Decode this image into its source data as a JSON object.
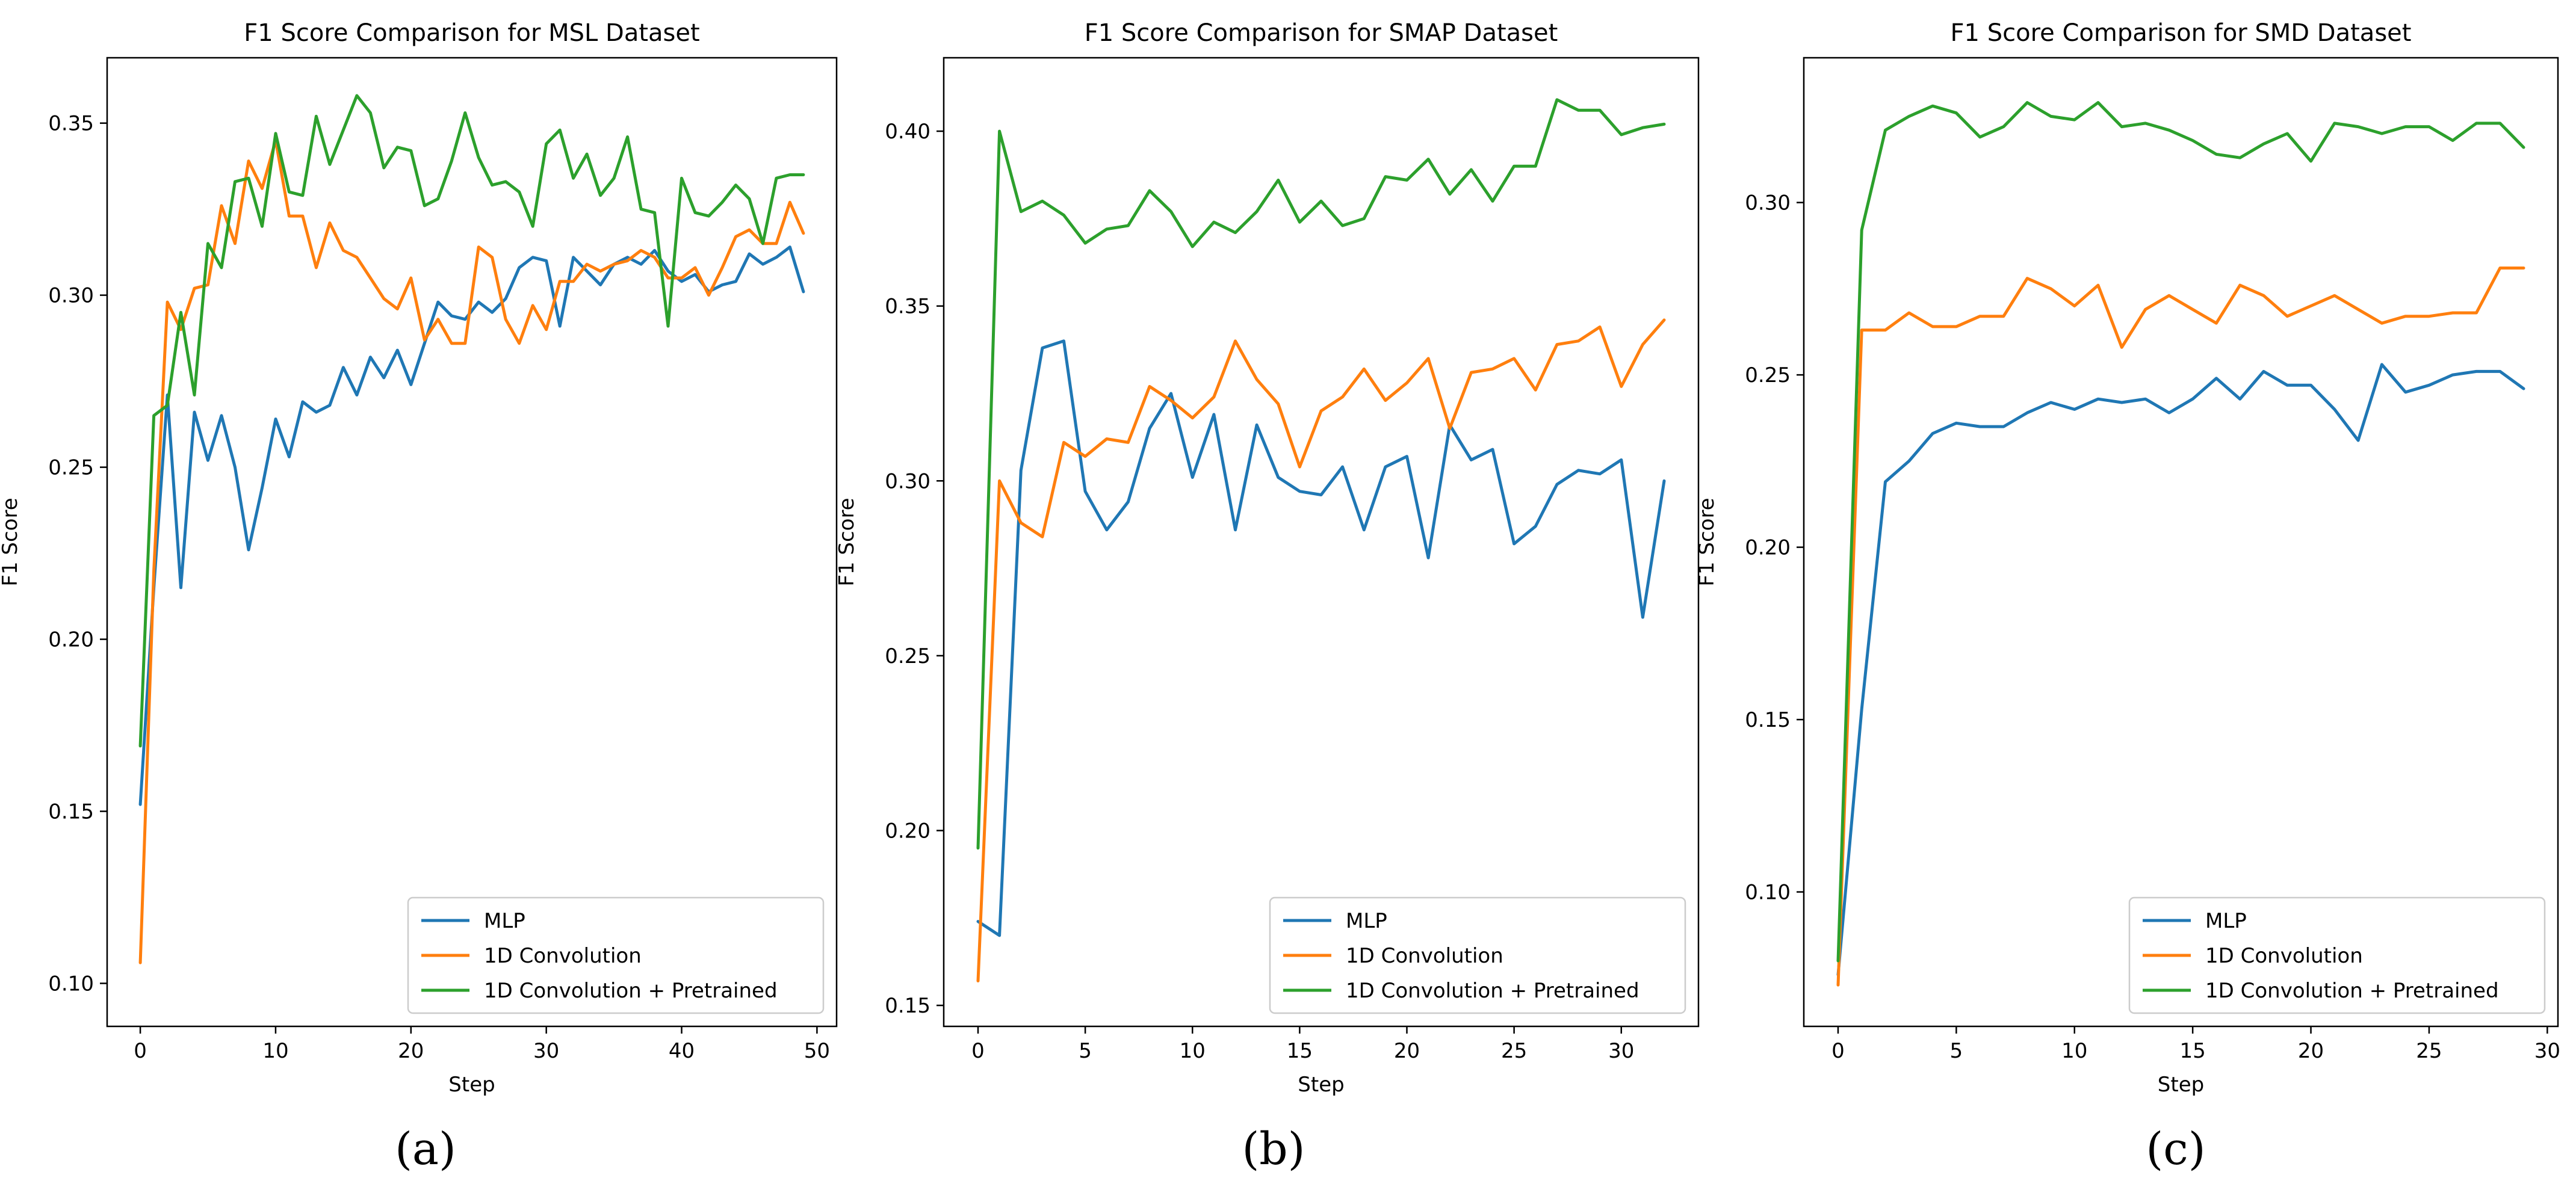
{
  "figure": {
    "panel_labels": [
      "(a)",
      "(b)",
      "(c)"
    ]
  },
  "series_colors": [
    "#1f77b4",
    "#ff7f0e",
    "#2ca02c"
  ],
  "legend_location": "lower-right",
  "chart_data": [
    {
      "type": "line",
      "title": "F1 Score Comparison for MSL Dataset",
      "xlabel": "Step",
      "ylabel": "F1 Score",
      "xlim": [
        -2.45,
        51.45
      ],
      "ylim": [
        0.0875,
        0.369
      ],
      "xticks": [
        0,
        10,
        20,
        30,
        40,
        50
      ],
      "yticks": [
        0.1,
        0.15,
        0.2,
        0.25,
        0.3,
        0.35
      ],
      "ytick_labels": [
        "0.10",
        "0.15",
        "0.20",
        "0.25",
        "0.30",
        "0.35"
      ],
      "series": [
        {
          "name": "MLP",
          "values": [
            0.152,
            0.215,
            0.271,
            0.215,
            0.266,
            0.252,
            0.265,
            0.25,
            0.226,
            0.244,
            0.264,
            0.253,
            0.269,
            0.266,
            0.268,
            0.279,
            0.271,
            0.282,
            0.276,
            0.284,
            0.274,
            0.286,
            0.298,
            0.294,
            0.293,
            0.298,
            0.295,
            0.299,
            0.308,
            0.311,
            0.31,
            0.291,
            0.311,
            0.307,
            0.303,
            0.309,
            0.311,
            0.309,
            0.313,
            0.307,
            0.304,
            0.306,
            0.301,
            0.303,
            0.304,
            0.312,
            0.309,
            0.311,
            0.314,
            0.301
          ]
        },
        {
          "name": "1D Convolution",
          "values": [
            0.106,
            0.22,
            0.298,
            0.29,
            0.302,
            0.303,
            0.326,
            0.315,
            0.339,
            0.331,
            0.345,
            0.323,
            0.323,
            0.308,
            0.321,
            0.313,
            0.311,
            0.305,
            0.299,
            0.296,
            0.305,
            0.287,
            0.293,
            0.286,
            0.286,
            0.314,
            0.311,
            0.293,
            0.286,
            0.297,
            0.29,
            0.304,
            0.304,
            0.309,
            0.307,
            0.309,
            0.31,
            0.313,
            0.311,
            0.305,
            0.305,
            0.308,
            0.3,
            0.308,
            0.317,
            0.319,
            0.315,
            0.315,
            0.327,
            0.318
          ]
        },
        {
          "name": "1D Convolution + Pretrained",
          "values": [
            0.169,
            0.265,
            0.268,
            0.295,
            0.271,
            0.315,
            0.308,
            0.333,
            0.334,
            0.32,
            0.347,
            0.33,
            0.329,
            0.352,
            0.338,
            0.348,
            0.358,
            0.353,
            0.337,
            0.343,
            0.342,
            0.326,
            0.328,
            0.339,
            0.353,
            0.34,
            0.332,
            0.333,
            0.33,
            0.32,
            0.344,
            0.348,
            0.334,
            0.341,
            0.329,
            0.334,
            0.346,
            0.325,
            0.324,
            0.291,
            0.334,
            0.324,
            0.323,
            0.327,
            0.332,
            0.328,
            0.315,
            0.334,
            0.335,
            0.335
          ]
        }
      ]
    },
    {
      "type": "line",
      "title": "F1 Score Comparison for SMAP Dataset",
      "xlabel": "Step",
      "ylabel": "F1 Score",
      "xlim": [
        -1.6,
        33.6
      ],
      "ylim": [
        0.144,
        0.421
      ],
      "xticks": [
        0,
        5,
        10,
        15,
        20,
        25,
        30
      ],
      "yticks": [
        0.15,
        0.2,
        0.25,
        0.3,
        0.35,
        0.4
      ],
      "ytick_labels": [
        "0.15",
        "0.20",
        "0.25",
        "0.30",
        "0.35",
        "0.40"
      ],
      "series": [
        {
          "name": "MLP",
          "values": [
            0.174,
            0.17,
            0.303,
            0.338,
            0.34,
            0.297,
            0.286,
            0.294,
            0.315,
            0.325,
            0.301,
            0.319,
            0.286,
            0.316,
            0.301,
            0.297,
            0.296,
            0.304,
            0.286,
            0.304,
            0.307,
            0.278,
            0.316,
            0.306,
            0.309,
            0.282,
            0.287,
            0.299,
            0.303,
            0.302,
            0.306,
            0.261,
            0.3
          ]
        },
        {
          "name": "1D Convolution",
          "values": [
            0.157,
            0.3,
            0.288,
            0.284,
            0.311,
            0.307,
            0.312,
            0.311,
            0.327,
            0.323,
            0.318,
            0.324,
            0.34,
            0.329,
            0.322,
            0.304,
            0.32,
            0.324,
            0.332,
            0.323,
            0.328,
            0.335,
            0.315,
            0.331,
            0.332,
            0.335,
            0.326,
            0.339,
            0.34,
            0.344,
            0.327,
            0.339,
            0.346
          ]
        },
        {
          "name": "1D Convolution + Pretrained",
          "values": [
            0.195,
            0.4,
            0.377,
            0.38,
            0.376,
            0.368,
            0.372,
            0.373,
            0.383,
            0.377,
            0.367,
            0.374,
            0.371,
            0.377,
            0.386,
            0.374,
            0.38,
            0.373,
            0.375,
            0.387,
            0.386,
            0.392,
            0.382,
            0.389,
            0.38,
            0.39,
            0.39,
            0.409,
            0.406,
            0.406,
            0.399,
            0.401,
            0.402
          ]
        }
      ]
    },
    {
      "type": "line",
      "title": "F1 Score Comparison for SMD Dataset",
      "xlabel": "Step",
      "ylabel": "F1 Score",
      "xlim": [
        -1.45,
        30.45
      ],
      "ylim": [
        0.061,
        0.342
      ],
      "xticks": [
        0,
        5,
        10,
        15,
        20,
        25,
        30
      ],
      "yticks": [
        0.1,
        0.15,
        0.2,
        0.25,
        0.3
      ],
      "ytick_labels": [
        "0.10",
        "0.15",
        "0.20",
        "0.25",
        "0.30"
      ],
      "series": [
        {
          "name": "MLP",
          "values": [
            0.076,
            0.153,
            0.219,
            0.225,
            0.233,
            0.236,
            0.235,
            0.235,
            0.239,
            0.242,
            0.24,
            0.243,
            0.242,
            0.243,
            0.239,
            0.243,
            0.249,
            0.243,
            0.251,
            0.247,
            0.247,
            0.24,
            0.231,
            0.253,
            0.245,
            0.247,
            0.25,
            0.251,
            0.251,
            0.246
          ]
        },
        {
          "name": "1D Convolution",
          "values": [
            0.073,
            0.263,
            0.263,
            0.268,
            0.264,
            0.264,
            0.267,
            0.267,
            0.278,
            0.275,
            0.27,
            0.276,
            0.258,
            0.269,
            0.273,
            0.269,
            0.265,
            0.276,
            0.273,
            0.267,
            0.27,
            0.273,
            0.269,
            0.265,
            0.267,
            0.267,
            0.268,
            0.268,
            0.281,
            0.281
          ]
        },
        {
          "name": "1D Convolution + Pretrained",
          "values": [
            0.08,
            0.292,
            0.321,
            0.325,
            0.328,
            0.326,
            0.319,
            0.322,
            0.329,
            0.325,
            0.324,
            0.329,
            0.322,
            0.323,
            0.321,
            0.318,
            0.314,
            0.313,
            0.317,
            0.32,
            0.312,
            0.323,
            0.322,
            0.32,
            0.322,
            0.322,
            0.318,
            0.323,
            0.323,
            0.316
          ]
        }
      ]
    }
  ]
}
